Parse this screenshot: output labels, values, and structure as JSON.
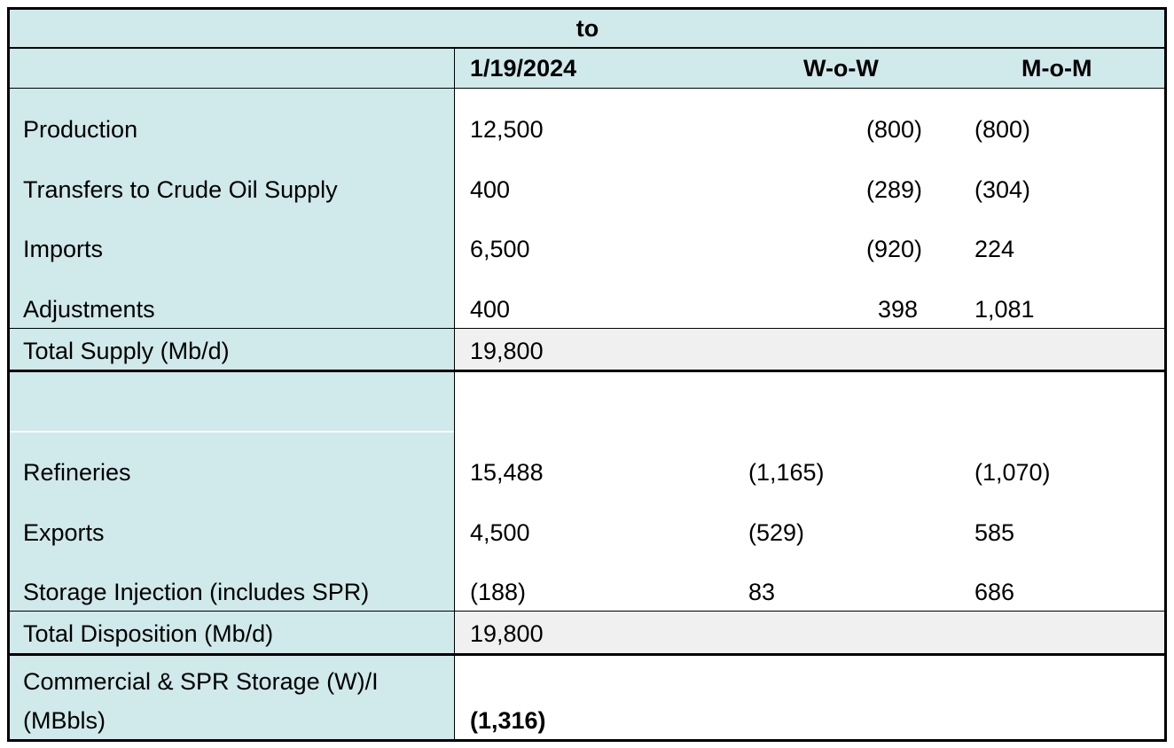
{
  "header": {
    "top_label": "to",
    "date": "1/19/2024",
    "wow": "W-o-W",
    "mom": "M-o-M"
  },
  "supply": {
    "rows": [
      {
        "label": "Production",
        "value": "12,500",
        "wow": "(800)",
        "mom": "(800)"
      },
      {
        "label": "Transfers to Crude Oil Supply",
        "value": "400",
        "wow": "(289)",
        "mom": "(304)"
      },
      {
        "label": "Imports",
        "value": "6,500",
        "wow": "(920)",
        "mom": "224"
      },
      {
        "label": "Adjustments",
        "value": "400",
        "wow": "398",
        "mom": "1,081"
      }
    ],
    "total_label": "Total Supply (Mb/d)",
    "total_value": "19,800"
  },
  "disposition": {
    "rows": [
      {
        "label": "Refineries",
        "value": "15,488",
        "wow": "(1,165)",
        "mom": "(1,070)"
      },
      {
        "label": "Exports",
        "value": "4,500",
        "wow": "(529)",
        "mom": "585"
      },
      {
        "label": "Storage Injection (includes SPR)",
        "value": "(188)",
        "wow": "83",
        "mom": "686"
      }
    ],
    "total_label": "Total Disposition (Mb/d)",
    "total_value": "19,800"
  },
  "storage": {
    "label_line1": "Commercial & SPR Storage (W)/I",
    "label_line2": "(MBbls)",
    "value": "(1,316)"
  },
  "colors": {
    "teal": "#d0e9eb",
    "total_gray": "#f0f0f0",
    "border": "#000000"
  }
}
